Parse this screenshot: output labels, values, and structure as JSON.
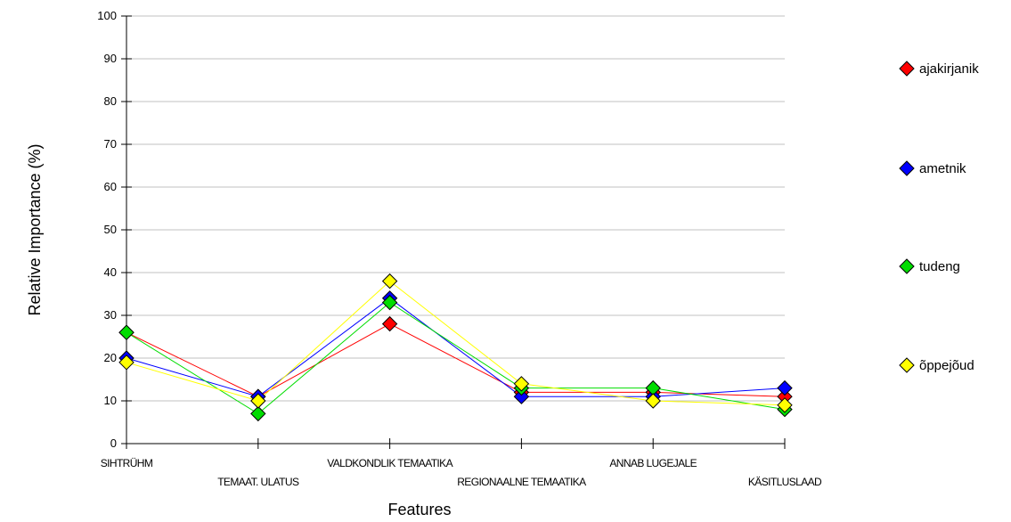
{
  "chart_data": {
    "type": "line",
    "categories": [
      "SIHTRÜHM",
      "TEMAAT. ULATUS",
      "VALDKONDLIK TEMAATIKA",
      "REGIONAALNE TEMAATIKA",
      "ANNAB LUGEJALE",
      "KÄSITLUSLAAD"
    ],
    "series": [
      {
        "name": "ajakirjanik",
        "color": "#ff0000",
        "values": [
          26,
          11,
          28,
          12,
          12,
          11
        ]
      },
      {
        "name": "ametnik",
        "color": "#0000ff",
        "values": [
          20,
          11,
          34,
          11,
          11,
          13
        ]
      },
      {
        "name": "tudeng",
        "color": "#00dd00",
        "values": [
          26,
          7,
          33,
          13,
          13,
          8
        ]
      },
      {
        "name": "õppejõud",
        "color": "#ffff00",
        "values": [
          19,
          10,
          38,
          14,
          10,
          9
        ]
      }
    ],
    "xlabel": "Features",
    "ylabel": "Relative Importance (%)",
    "ylim": [
      0,
      100
    ],
    "yticks": [
      0,
      10,
      20,
      30,
      40,
      50,
      60,
      70,
      80,
      90,
      100
    ],
    "grid": true,
    "legend_position": "right",
    "marker": "diamond"
  }
}
